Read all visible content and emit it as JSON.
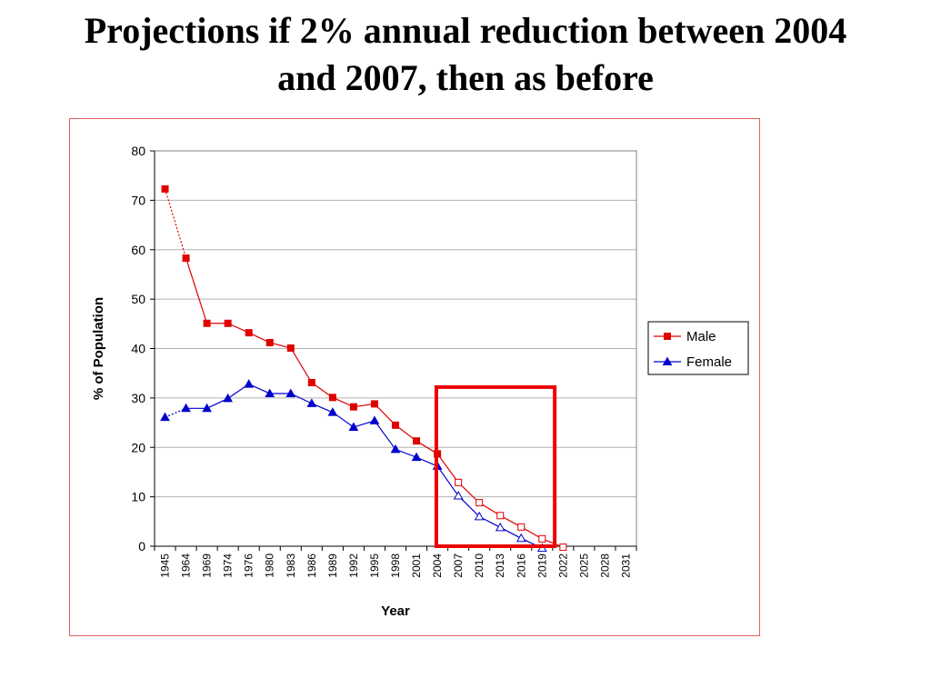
{
  "slide": {
    "title_line1": "Projections if 2% annual reduction between 2004",
    "title_line2": "and 2007, then as before"
  },
  "chart_data": {
    "type": "line",
    "xlabel": "Year",
    "ylabel": "% of Population",
    "ylim": [
      0,
      80
    ],
    "y_ticks": [
      0,
      10,
      20,
      30,
      40,
      50,
      60,
      70,
      80
    ],
    "grid": true,
    "legend_position": "right",
    "categories": [
      "1945",
      "1964",
      "1969",
      "1974",
      "1976",
      "1980",
      "1983",
      "1986",
      "1989",
      "1992",
      "1995",
      "1998",
      "2001",
      "2004",
      "2007",
      "2010",
      "2013",
      "2016",
      "2019",
      "2022",
      "2025",
      "2028",
      "2031"
    ],
    "series": [
      {
        "name": "Male",
        "color": "#e00000",
        "marker": "square",
        "values": [
          72.3,
          58.3,
          45.1,
          45.1,
          43.2,
          41.2,
          40.1,
          33.1,
          30.1,
          28.2,
          28.8,
          24.5,
          21.3,
          18.7,
          12.9,
          8.8,
          6.2,
          3.9,
          1.5,
          -0.2,
          null,
          null,
          null
        ],
        "projected_from_index": 14,
        "dotted_segments": [
          0
        ]
      },
      {
        "name": "Female",
        "color": "#0000cc",
        "marker": "triangle",
        "values": [
          26.1,
          27.9,
          27.9,
          29.9,
          32.8,
          30.9,
          30.9,
          28.9,
          27.1,
          24.1,
          25.4,
          19.6,
          18.0,
          16.2,
          10.2,
          6.0,
          3.8,
          1.6,
          -0.4,
          null,
          null,
          null,
          null
        ],
        "projected_from_index": 14,
        "dotted_segments": [
          0
        ]
      }
    ],
    "highlight_box": {
      "from_category": "2004",
      "to_category": "2019",
      "y_top": 32.2,
      "y_bottom": 0,
      "color": "#ee0000"
    }
  }
}
